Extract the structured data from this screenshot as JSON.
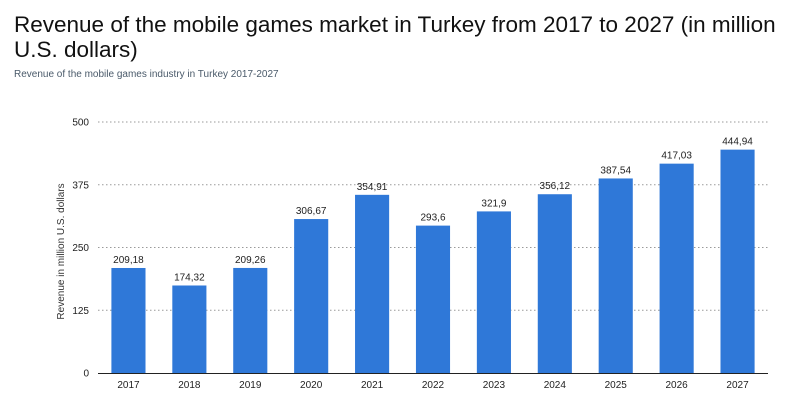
{
  "chart_data": {
    "type": "bar",
    "title": "Revenue of the mobile games market in Turkey from 2017 to 2027 (in million U.S. dollars)",
    "subtitle": "Revenue of the mobile games industry in Turkey 2017-2027",
    "xlabel": "",
    "ylabel": "Revenue in million U.S. dollars",
    "categories": [
      "2017",
      "2018",
      "2019",
      "2020",
      "2021",
      "2022",
      "2023",
      "2024",
      "2025",
      "2026",
      "2027"
    ],
    "values": [
      209.18,
      174.32,
      209.26,
      306.67,
      354.91,
      293.6,
      321.9,
      356.12,
      387.54,
      417.03,
      444.94
    ],
    "value_labels": [
      "209,18",
      "174,32",
      "209,26",
      "306,67",
      "354,91",
      "293,6",
      "321,9",
      "356,12",
      "387,54",
      "417,03",
      "444,94"
    ],
    "ylim": [
      0,
      500
    ],
    "yticks": [
      0,
      125,
      250,
      375,
      500
    ],
    "grid": true,
    "bar_color": "#2f78d8"
  }
}
